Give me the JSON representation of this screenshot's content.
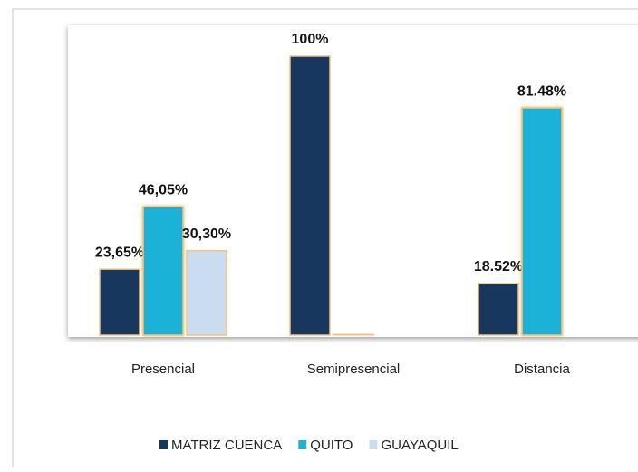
{
  "chart_data": {
    "type": "bar",
    "categories": [
      "Presencial",
      "Semipresencial",
      "Distancia"
    ],
    "series": [
      {
        "name": "MATRIZ CUENCA",
        "color": "#17375e",
        "values": [
          23.65,
          100,
          18.52
        ],
        "value_labels": [
          "23,65%",
          "100%",
          "18.52%"
        ]
      },
      {
        "name": "QUITO",
        "color": "#1eb2d8",
        "values": [
          46.05,
          0,
          81.48
        ],
        "value_labels": [
          "46,05%",
          null,
          "81.48%"
        ]
      },
      {
        "name": "GUAYAQUIL",
        "color": "#c9dcf2",
        "values": [
          30.3,
          null,
          null
        ],
        "value_labels": [
          "30,30%",
          null,
          null
        ]
      }
    ]
  }
}
